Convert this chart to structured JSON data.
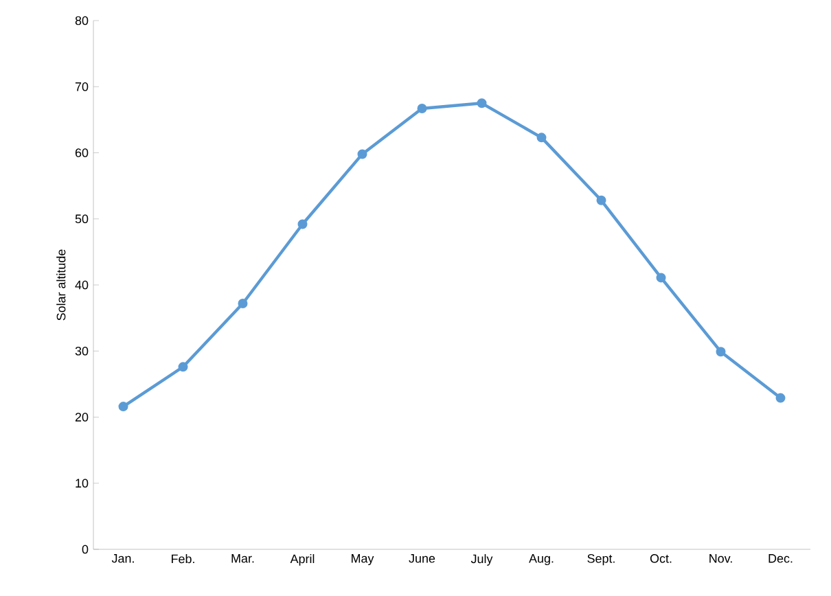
{
  "chart_data": {
    "type": "line",
    "ylabel": "Solar altitude",
    "categories": [
      "Jan.",
      "Feb.",
      "Mar.",
      "April",
      "May",
      "June",
      "July",
      "Aug.",
      "Sept.",
      "Oct.",
      "Nov.",
      "Dec."
    ],
    "series": [
      {
        "color": "#5b9bd5",
        "values": [
          21.6,
          27.6,
          37.2,
          49.2,
          59.8,
          66.7,
          67.5,
          62.3,
          52.8,
          41.1,
          29.9,
          22.9
        ]
      }
    ],
    "ylim": [
      0,
      80
    ],
    "yticks": [
      0,
      10,
      20,
      30,
      40,
      50,
      60,
      70,
      80
    ],
    "marker": "circle",
    "line_style": "solid",
    "grid": false
  }
}
